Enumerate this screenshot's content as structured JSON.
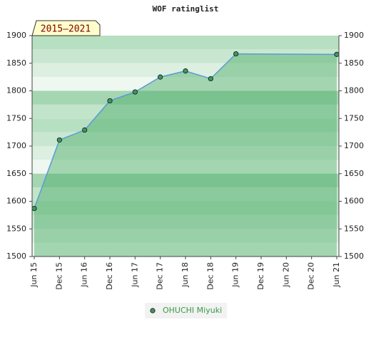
{
  "chart_data": {
    "type": "area",
    "title": "WOF ratinglist",
    "annotation": "2015–2021",
    "categories": [
      "Jun 15",
      "Dec 15",
      "Jun 16",
      "Dec 16",
      "Jun 17",
      "Dec 17",
      "Jun 18",
      "Dec 18",
      "Jun 19",
      "Dec 19",
      "Jun 20",
      "Dec 20",
      "Jun 21"
    ],
    "series": [
      {
        "name": "OHUCHI Miyuki",
        "color": "#5b9bd5",
        "x": [
          "Jun 15",
          "Dec 15",
          "Jun 16",
          "Dec 16",
          "Jun 17",
          "Dec 17",
          "Jun 18",
          "Dec 18",
          "Jun 19",
          "Jun 21"
        ],
        "values": [
          1587,
          1711,
          1729,
          1782,
          1798,
          1825,
          1836,
          1822,
          1867,
          1866
        ]
      }
    ],
    "ylim": [
      1500,
      1900
    ],
    "yticks": [
      1500,
      1550,
      1600,
      1650,
      1700,
      1750,
      1800,
      1850,
      1900
    ],
    "legend": "bottom"
  }
}
